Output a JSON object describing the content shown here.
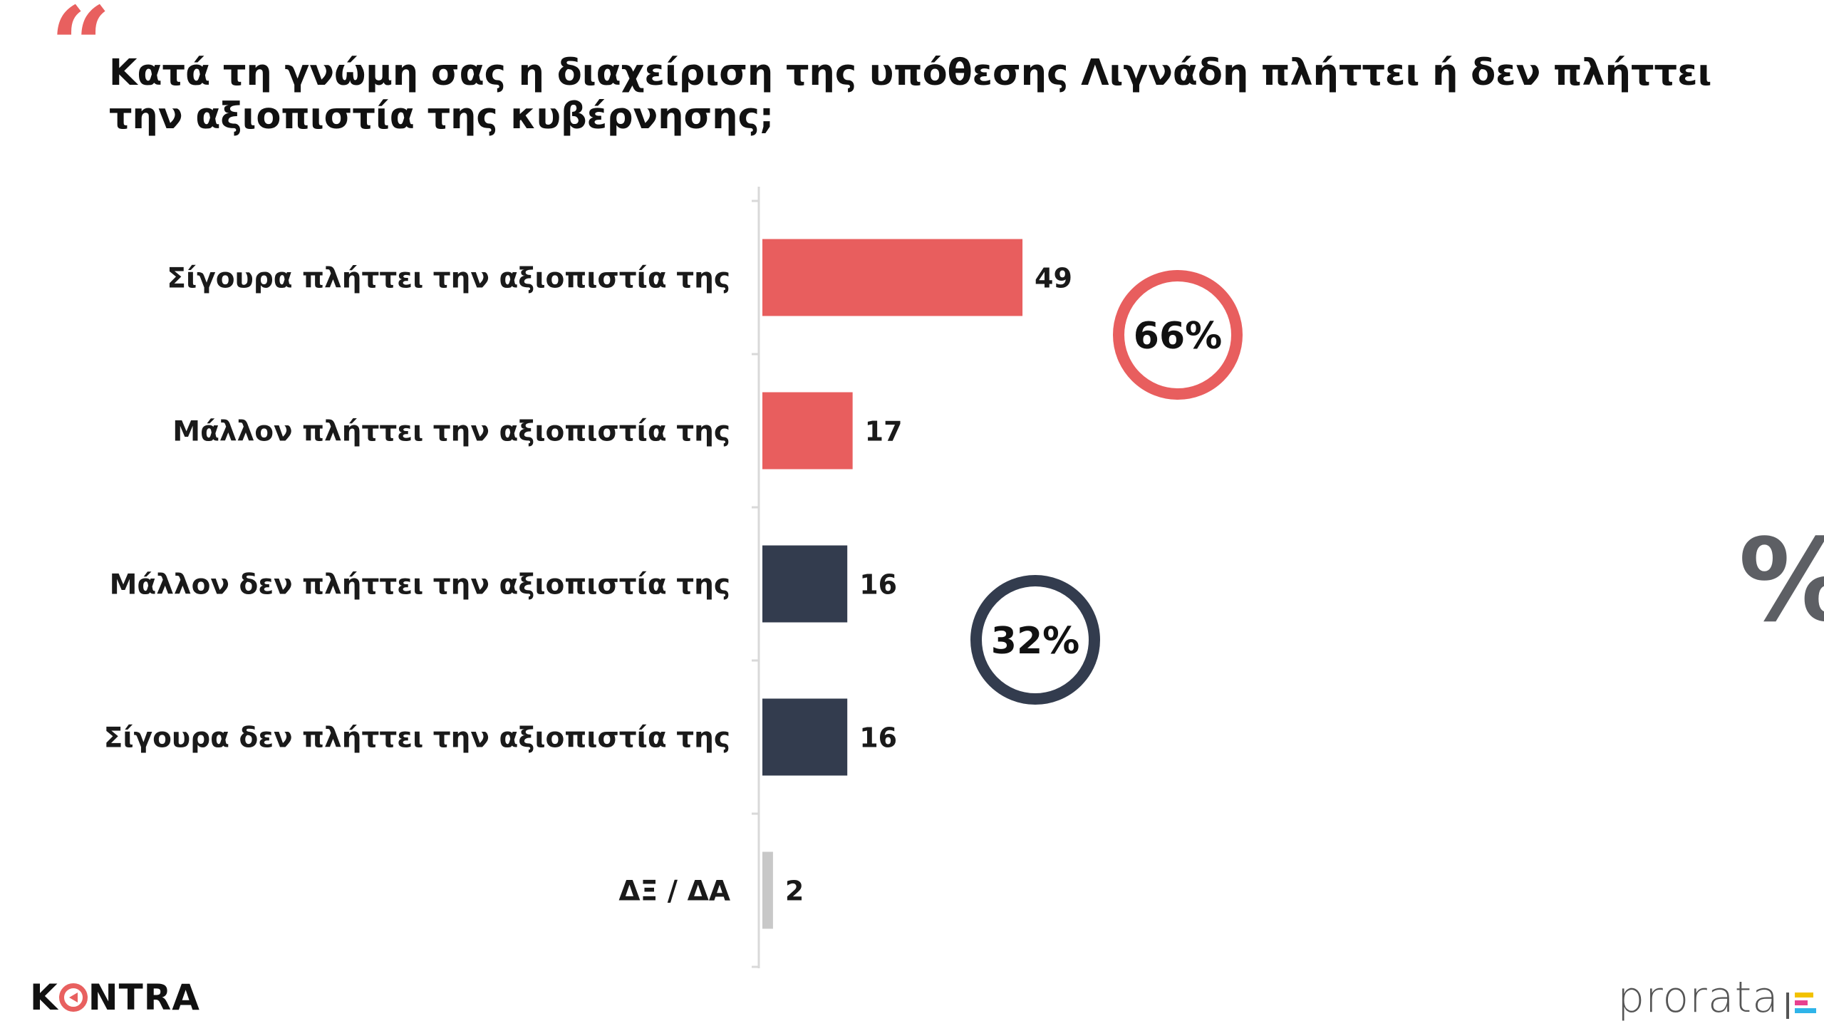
{
  "header": {
    "quote_glyph": "“",
    "title": "Κατά τη γνώμη σας η διαχείριση της υπόθεσης Λιγνάδη πλήττει ή δεν πλήττει την αξιοπιστία της κυβέρνησης;"
  },
  "chart_data": {
    "type": "bar",
    "orientation": "horizontal",
    "title": "Κατά τη γνώμη σας η διαχείριση της υπόθεσης Λιγνάδη πλήττει ή δεν πλήττει την αξιοπιστία της κυβέρνησης;",
    "categories": [
      "Σίγουρα πλήττει την αξιοπιστία της",
      "Μάλλον πλήττει την αξιοπιστία της",
      "Μάλλον δεν πλήττει την αξιοπιστία της",
      "Σίγουρα δεν πλήττει την αξιοπιστία της",
      "ΔΞ / ΔΑ"
    ],
    "values": [
      49,
      17,
      16,
      16,
      2
    ],
    "bar_colors": [
      "#e85e5e",
      "#e85e5e",
      "#333c4e",
      "#333c4e",
      "#c8c8c8"
    ],
    "xlim": [
      0,
      100
    ],
    "grid": false,
    "unit": "%",
    "annotations": [
      {
        "label": "66%",
        "groups": [
          0,
          1
        ],
        "color": "#e85e5e"
      },
      {
        "label": "32%",
        "groups": [
          2,
          3
        ],
        "color": "#333c4e"
      }
    ]
  },
  "decor": {
    "percent_icon": "%"
  },
  "logos": {
    "left_brand_k": "K",
    "left_brand_rest": "NTRA",
    "right_brand": "prorata",
    "right_brand_bar_colors": [
      "#f2c200",
      "#e8408f",
      "#2fb4e9"
    ]
  }
}
